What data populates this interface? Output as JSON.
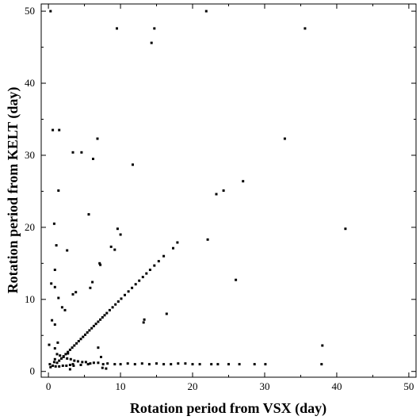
{
  "chart_data": {
    "type": "scatter",
    "title": "",
    "xlabel": "Rotation period from VSX (day)",
    "ylabel": "Rotation period from KELT (day)",
    "xlim": [
      -1,
      51
    ],
    "ylim": [
      -0.8,
      51
    ],
    "xticks": [
      0,
      10,
      20,
      30,
      40,
      50
    ],
    "yticks": [
      0,
      10,
      20,
      30,
      40,
      50
    ],
    "grid": false,
    "legend": "none",
    "marker_color": "#000000",
    "series": [
      {
        "points": [
          [
            0.3,
            50.0
          ],
          [
            9.5,
            47.6
          ],
          [
            14.7,
            47.6
          ],
          [
            14.3,
            45.6
          ],
          [
            21.9,
            50.0
          ],
          [
            35.6,
            47.6
          ],
          [
            0.6,
            33.5
          ],
          [
            1.5,
            33.5
          ],
          [
            6.8,
            32.3
          ],
          [
            3.4,
            30.4
          ],
          [
            4.6,
            30.4
          ],
          [
            6.2,
            29.5
          ],
          [
            11.7,
            28.7
          ],
          [
            32.8,
            32.3
          ],
          [
            23.3,
            24.6
          ],
          [
            24.3,
            25.1
          ],
          [
            27.0,
            26.4
          ],
          [
            1.4,
            25.1
          ],
          [
            5.6,
            21.8
          ],
          [
            0.8,
            20.5
          ],
          [
            9.6,
            19.8
          ],
          [
            10.0,
            19.0
          ],
          [
            22.1,
            18.3
          ],
          [
            41.2,
            19.8
          ],
          [
            1.1,
            17.5
          ],
          [
            2.6,
            16.8
          ],
          [
            8.7,
            17.3
          ],
          [
            9.2,
            16.9
          ],
          [
            7.1,
            15.0
          ],
          [
            7.2,
            14.8
          ],
          [
            0.9,
            14.1
          ],
          [
            16.4,
            8.0
          ],
          [
            26.0,
            12.7
          ],
          [
            0.4,
            12.2
          ],
          [
            0.9,
            11.7
          ],
          [
            1.4,
            10.2
          ],
          [
            1.9,
            8.9
          ],
          [
            2.3,
            8.5
          ],
          [
            3.4,
            10.7
          ],
          [
            3.8,
            11.0
          ],
          [
            5.8,
            11.6
          ],
          [
            6.1,
            12.4
          ],
          [
            0.5,
            7.1
          ],
          [
            0.9,
            6.5
          ],
          [
            13.2,
            6.8
          ],
          [
            13.3,
            7.2
          ],
          [
            6.9,
            3.3
          ],
          [
            7.3,
            2.0
          ],
          [
            0.1,
            3.7
          ],
          [
            0.9,
            3.2
          ],
          [
            0.9,
            1.7
          ],
          [
            1.3,
            4.0
          ],
          [
            38.0,
            3.6
          ],
          [
            37.9,
            1.0
          ],
          [
            30.1,
            1.0
          ],
          [
            28.6,
            1.0
          ],
          [
            25.0,
            1.0
          ],
          [
            21.0,
            1.0
          ],
          [
            20.0,
            1.0
          ],
          [
            19.0,
            1.1
          ],
          [
            18.0,
            1.1
          ],
          [
            17.0,
            1.0
          ],
          [
            16.0,
            1.0
          ],
          [
            15.0,
            1.1
          ],
          [
            14.0,
            1.0
          ],
          [
            13.0,
            1.1
          ],
          [
            12.0,
            1.0
          ],
          [
            11.0,
            1.1
          ],
          [
            10.0,
            1.0
          ],
          [
            9.2,
            1.0
          ],
          [
            8.2,
            1.1
          ],
          [
            7.6,
            1.0
          ],
          [
            6.9,
            1.2
          ],
          [
            6.3,
            1.2
          ],
          [
            5.8,
            1.1
          ],
          [
            5.2,
            1.3
          ],
          [
            4.7,
            1.3
          ],
          [
            4.1,
            1.4
          ],
          [
            3.6,
            1.5
          ],
          [
            3.1,
            1.7
          ],
          [
            2.6,
            1.8
          ],
          [
            2.1,
            2.0
          ],
          [
            1.6,
            2.2
          ],
          [
            1.2,
            2.4
          ],
          [
            0.8,
            1.3
          ],
          [
            0.6,
            0.8
          ],
          [
            0.3,
            0.6
          ],
          [
            1.0,
            0.7
          ],
          [
            1.5,
            0.7
          ],
          [
            2.0,
            0.8
          ],
          [
            2.5,
            0.8
          ],
          [
            3.0,
            0.9
          ],
          [
            3.5,
            0.8
          ],
          [
            4.5,
            0.9
          ],
          [
            5.5,
            1.0
          ],
          [
            7.5,
            0.5
          ],
          [
            8.0,
            0.4
          ],
          [
            1.2,
            1.2
          ],
          [
            1.5,
            1.5
          ],
          [
            1.8,
            1.8
          ],
          [
            2.1,
            2.1
          ],
          [
            2.4,
            2.4
          ],
          [
            2.7,
            2.7
          ],
          [
            3.0,
            3.0
          ],
          [
            3.3,
            3.3
          ],
          [
            3.6,
            3.6
          ],
          [
            3.9,
            3.9
          ],
          [
            4.2,
            4.2
          ],
          [
            4.5,
            4.5
          ],
          [
            4.8,
            4.8
          ],
          [
            5.1,
            5.1
          ],
          [
            5.4,
            5.4
          ],
          [
            5.7,
            5.7
          ],
          [
            6.0,
            6.0
          ],
          [
            6.3,
            6.3
          ],
          [
            6.6,
            6.6
          ],
          [
            6.9,
            6.9
          ],
          [
            7.2,
            7.2
          ],
          [
            7.5,
            7.5
          ],
          [
            7.8,
            7.8
          ],
          [
            8.1,
            8.1
          ],
          [
            8.5,
            8.5
          ],
          [
            8.9,
            8.9
          ],
          [
            9.3,
            9.3
          ],
          [
            9.7,
            9.7
          ],
          [
            10.1,
            10.1
          ],
          [
            10.6,
            10.6
          ],
          [
            11.1,
            11.1
          ],
          [
            11.6,
            11.6
          ],
          [
            12.1,
            12.1
          ],
          [
            12.6,
            12.6
          ],
          [
            13.1,
            13.1
          ],
          [
            13.6,
            13.6
          ],
          [
            14.1,
            14.1
          ],
          [
            14.7,
            14.7
          ],
          [
            15.3,
            15.3
          ],
          [
            16.0,
            16.0
          ],
          [
            17.3,
            17.1
          ],
          [
            17.9,
            17.9
          ],
          [
            22.6,
            1.0
          ],
          [
            23.5,
            1.0
          ],
          [
            26.5,
            1.0
          ],
          [
            3.0,
            0.3
          ],
          [
            0.2,
            1.0
          ],
          [
            3.4,
            1.0
          ],
          [
            2.7,
            2.5
          ]
        ]
      }
    ]
  }
}
